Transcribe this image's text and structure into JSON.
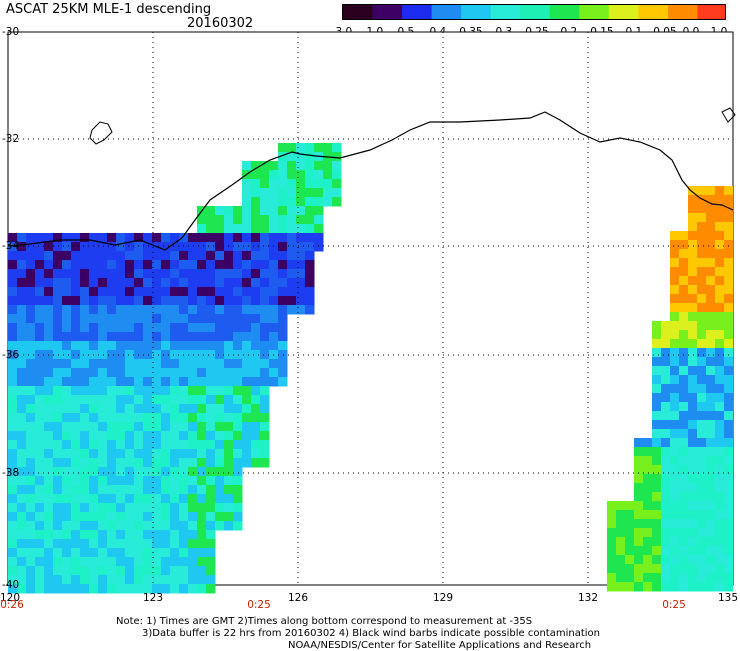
{
  "title": "ASCAT 25KM MLE-1 descending",
  "date": "20160302",
  "colorbar": {
    "ticks": [
      "-3.0",
      "-1.0",
      "-0.5",
      "-0.4",
      "-0.35",
      "-0.3",
      "-0.25",
      "-0.2",
      "-0.15",
      "-0.1",
      "-0.05",
      "0.0",
      "1.0"
    ],
    "colors": [
      "#2a001e",
      "#3c0064",
      "#1e2cf0",
      "#1e8cf0",
      "#1ec8f0",
      "#28ecd8",
      "#1ef0b4",
      "#1ee650",
      "#78f01e",
      "#dcf01e",
      "#ffc800",
      "#ff8c00",
      "#ff3c1e"
    ]
  },
  "map": {
    "lat_labels": [
      "-30",
      "-32",
      "-34",
      "-36",
      "-38",
      "-40"
    ],
    "lon_labels": [
      "120",
      "123",
      "126",
      "129",
      "132",
      "135"
    ],
    "lat_range": [
      -40,
      -30
    ],
    "lon_range": [
      120,
      135
    ]
  },
  "pass_times": [
    "0:26",
    "0:25",
    "0:25"
  ],
  "notes": [
    "Note: 1) Times are GMT 2)Times along bottom correspond to measurement at -35S",
    "3)Data buffer is 22 hrs from 20160302 4) Black wind barbs indicate possible contamination",
    "NOAA/NESDIS/Center for Satellite Applications and Research"
  ]
}
